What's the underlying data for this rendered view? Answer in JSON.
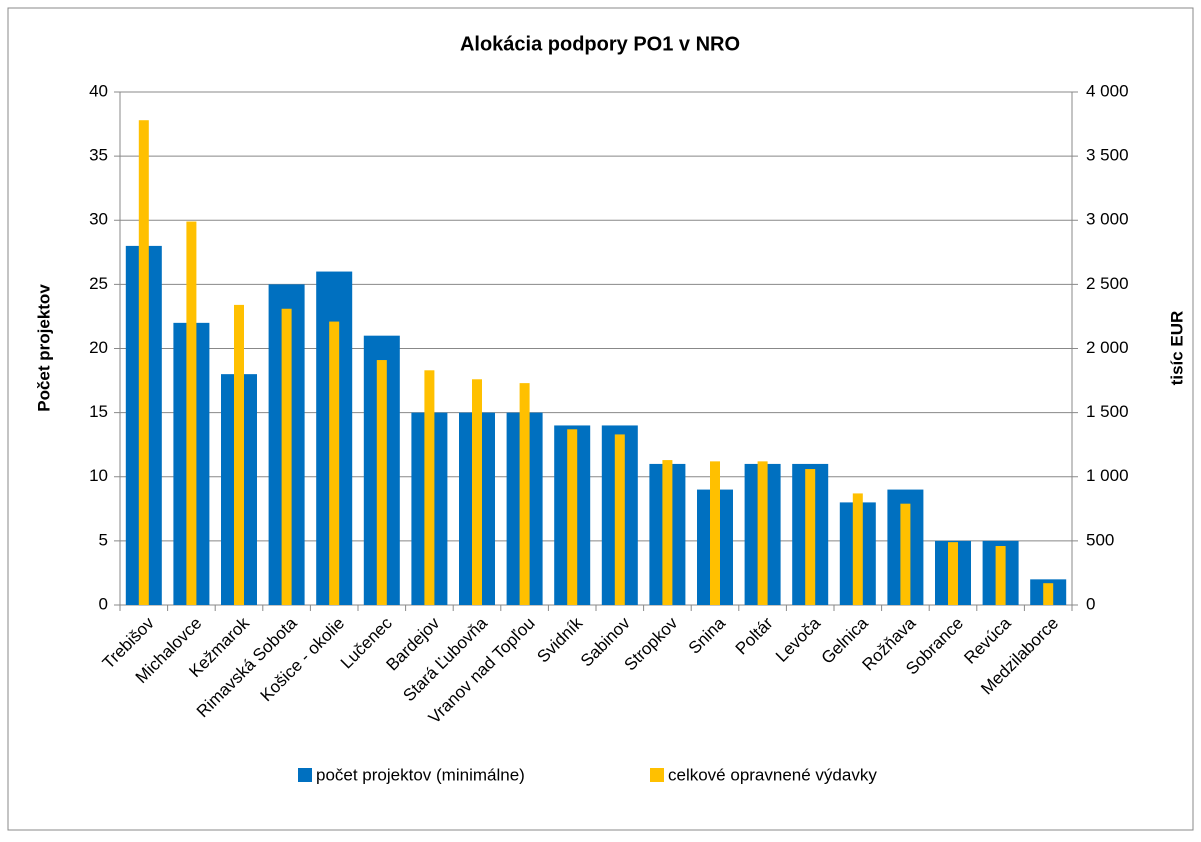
{
  "chart_data": {
    "type": "bar",
    "title": "Alokácia podpory PO1 v NRO",
    "y_label": "Počet projektov",
    "y2_label": "tisíc EUR",
    "categories": [
      "Trebišov",
      "Michalovce",
      "Kežmarok",
      "Rimavská Sobota",
      "Košice - okolie",
      "Lučenec",
      "Bardejov",
      "Stará Ľubovňa",
      "Vranov nad Topľou",
      "Svidník",
      "Sabinov",
      "Stropkov",
      "Snina",
      "Poltár",
      "Levoča",
      "Gelnica",
      "Rožňava",
      "Sobrance",
      "Revúca",
      "Medzilaborce"
    ],
    "series": [
      {
        "name": "počet projektov (minimálne)",
        "color": "#0070c0",
        "values": [
          28,
          22,
          18,
          25,
          26,
          21,
          15,
          15,
          15,
          14,
          14,
          11,
          9,
          11,
          11,
          8,
          9,
          5,
          5,
          2
        ]
      },
      {
        "name": "celkové opravnené výdavky",
        "color": "#ffc000",
        "axis": "y2",
        "values": [
          3780,
          2990,
          2340,
          2310,
          2210,
          1910,
          1830,
          1760,
          1730,
          1370,
          1330,
          1130,
          1120,
          1120,
          1060,
          870,
          790,
          490,
          460,
          170
        ]
      }
    ],
    "ylim": [
      0,
      40
    ],
    "yticks": [
      0,
      5,
      10,
      15,
      20,
      25,
      30,
      35,
      40
    ],
    "y2lim": [
      0,
      4000
    ],
    "y2ticks": [
      0,
      500,
      {
        "value": 1000,
        "label": "1 000"
      },
      {
        "value": 1500,
        "label": "1 500"
      },
      {
        "value": 2000,
        "label": "2 000"
      },
      {
        "value": 2500,
        "label": "2 500"
      },
      {
        "value": 3000,
        "label": "3 000"
      },
      {
        "value": 3500,
        "label": "3 500"
      },
      {
        "value": 4000,
        "label": "4 000"
      }
    ],
    "grid": true,
    "legend": "bottom"
  }
}
